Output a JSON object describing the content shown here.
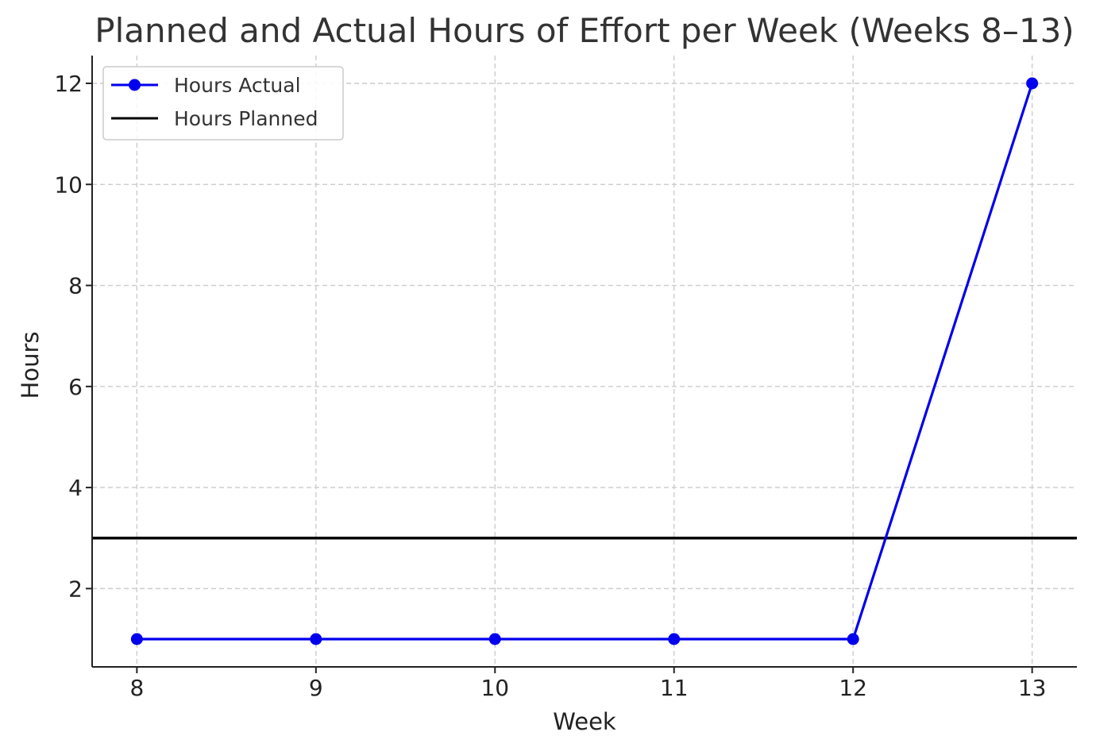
{
  "chart_data": {
    "type": "line",
    "title": "Planned and Actual Hours of Effort per Week (Weeks 8–13)",
    "xlabel": "Week",
    "ylabel": "Hours",
    "x": [
      8,
      9,
      10,
      11,
      12,
      13
    ],
    "xlim": [
      7.75,
      13.25
    ],
    "ylim": [
      0.45,
      12.55
    ],
    "xticks": [
      8,
      9,
      10,
      11,
      12,
      13
    ],
    "yticks": [
      2,
      4,
      6,
      8,
      10,
      12
    ],
    "grid": true,
    "legend_position": "top-left",
    "series": [
      {
        "name": "Hours Actual",
        "values": [
          1,
          1,
          1,
          1,
          1,
          12
        ],
        "color": "#0000ee",
        "marker": "circle",
        "style": "line-with-markers"
      },
      {
        "name": "Hours Planned",
        "value": 3,
        "color": "#000000",
        "style": "horizontal-line"
      }
    ]
  }
}
